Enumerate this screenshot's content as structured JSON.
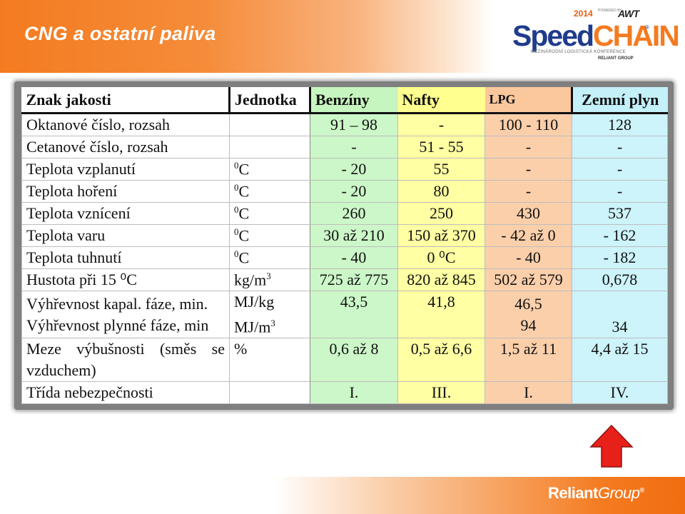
{
  "slide": {
    "title": "CNG a ostatní paliva"
  },
  "logo": {
    "year": "2014",
    "powered": "POWERED BY",
    "awt": "AWT",
    "brand_a": "Speed",
    "brand_b": "CHAIN",
    "reg": "®",
    "subtitle": "MEZINÁRODNÍ LOGISTICKÁ KONFERENCE",
    "group": "RELIANT GROUP"
  },
  "table": {
    "headers": [
      "Znak jakosti",
      "Jednotka",
      "Benzíny",
      "Nafty",
      "LPG",
      "Zemní plyn"
    ],
    "rows": [
      {
        "label": "Oktanové číslo, rozsah",
        "unit": "",
        "unit_sup": "",
        "unit_rest": "",
        "values": [
          "91 – 98",
          "-",
          "100 - 110",
          "128"
        ]
      },
      {
        "label": "Cetanové číslo, rozsah",
        "unit": "",
        "unit_sup": "",
        "unit_rest": "",
        "values": [
          "-",
          "51 - 55",
          "-",
          "-"
        ]
      },
      {
        "label": "Teplota vzplanutí",
        "unit": "",
        "unit_sup": "0",
        "unit_rest": "C",
        "values": [
          "- 20",
          "55",
          "-",
          "-"
        ]
      },
      {
        "label": "Teplota hoření",
        "unit": "",
        "unit_sup": "0",
        "unit_rest": "C",
        "values": [
          "- 20",
          "80",
          "-",
          "-"
        ]
      },
      {
        "label": "Teplota vznícení",
        "unit": "",
        "unit_sup": "0",
        "unit_rest": "C",
        "values": [
          "260",
          "250",
          "430",
          "537"
        ]
      },
      {
        "label": "Teplota varu",
        "unit": "",
        "unit_sup": "0",
        "unit_rest": "C",
        "values": [
          "30 až 210",
          "150 až 370",
          "- 42 až 0",
          "- 162"
        ]
      },
      {
        "label": "Teplota tuhnutí",
        "unit": "",
        "unit_sup": "0",
        "unit_rest": "C",
        "values": [
          "- 40",
          "0 ⁰C",
          "- 40",
          "- 182"
        ]
      },
      {
        "label": "Hustota při 15 ⁰C",
        "unit": "kg/m",
        "unit_sup": "3",
        "unit_rest": "",
        "values": [
          "725 až 775",
          "820 až 845",
          "502 až 579",
          "0,678"
        ]
      }
    ],
    "heating": {
      "label_1": "Výhřevnost kapal. fáze, min.",
      "label_2": "Výhřevnost plynné fáze, min",
      "unit_1": "MJ/kg",
      "unit_2": "MJ/m",
      "unit_2_sup": "3",
      "benz": "43,5",
      "naft": "41,8",
      "lpg_1": "46,5",
      "lpg_2": "94",
      "zemn": "34"
    },
    "explosive": {
      "label_1": "Meze výbušnosti (směs se",
      "label_2": "vzduchem)",
      "unit": "%",
      "values": [
        "0,6 až 8",
        "0,5 až 6,6",
        "1,5 až 11",
        "4,4 až 15"
      ]
    },
    "hazard": {
      "label": "Třída nebezpečnosti",
      "values": [
        "I.",
        "III.",
        "I.",
        "IV."
      ]
    }
  },
  "footer": {
    "brand_a": "Reliant",
    "brand_b": "Group",
    "reg": "®"
  },
  "colors": {
    "accent_orange": "#f47b20",
    "brand_blue": "#1f3b8c",
    "benziny": "#ccf7c8",
    "nafty": "#ffffa3",
    "lpg": "#fbcfaa",
    "zemni_plyn": "#cdf3fb",
    "arrow": "#e8201a"
  },
  "icons": {
    "arrow": "red-up-arrow-icon"
  }
}
